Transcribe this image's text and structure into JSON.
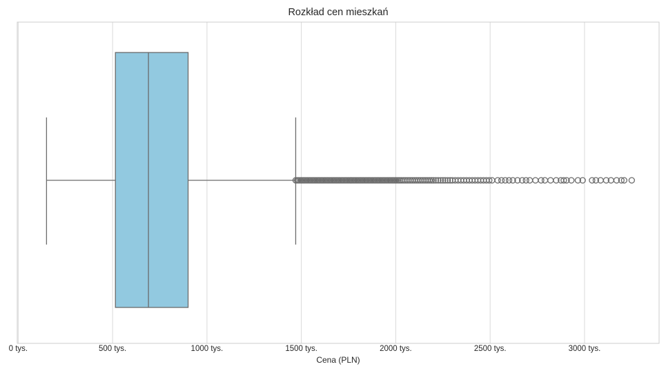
{
  "chart_data": {
    "type": "box",
    "title": "Rozkład cen mieszkań",
    "xlabel": "Cena (PLN)",
    "ylabel": "",
    "xlim": [
      -5,
      3395
    ],
    "orientation": "horizontal",
    "grid": "vertical",
    "ticks": [
      {
        "value": 0,
        "label": "0 tys."
      },
      {
        "value": 500,
        "label": "500 tys."
      },
      {
        "value": 1000,
        "label": "1000 tys."
      },
      {
        "value": 1500,
        "label": "1500 tys."
      },
      {
        "value": 2000,
        "label": "2000 tys."
      },
      {
        "value": 2500,
        "label": "2500 tys."
      },
      {
        "value": 3000,
        "label": "3000 tys."
      }
    ],
    "box": {
      "whisker_low": 150,
      "q1": 515,
      "median": 690,
      "q3": 900,
      "whisker_high": 1470
    },
    "outliers": [
      1470,
      1478,
      1486,
      1494,
      1502,
      1510,
      1518,
      1526,
      1534,
      1542,
      1550,
      1558,
      1566,
      1574,
      1582,
      1590,
      1598,
      1606,
      1614,
      1622,
      1630,
      1638,
      1646,
      1654,
      1662,
      1670,
      1678,
      1686,
      1694,
      1702,
      1710,
      1718,
      1726,
      1734,
      1742,
      1750,
      1758,
      1766,
      1774,
      1782,
      1790,
      1798,
      1806,
      1814,
      1822,
      1830,
      1838,
      1846,
      1854,
      1862,
      1870,
      1878,
      1886,
      1894,
      1902,
      1910,
      1918,
      1926,
      1934,
      1942,
      1950,
      1958,
      1966,
      1974,
      1982,
      1990,
      1998,
      2006,
      2014,
      2022,
      2030,
      2040,
      2050,
      2060,
      2070,
      2080,
      2090,
      2100,
      2110,
      2120,
      2130,
      2140,
      2150,
      2160,
      2170,
      2180,
      2190,
      2200,
      2212,
      2225,
      2238,
      2250,
      2262,
      2275,
      2288,
      2300,
      2315,
      2330,
      2345,
      2360,
      2375,
      2390,
      2405,
      2420,
      2435,
      2450,
      2465,
      2480,
      2495,
      2510,
      2540,
      2560,
      2580,
      2600,
      2620,
      2645,
      2670,
      2690,
      2710,
      2740,
      2770,
      2790,
      2820,
      2850,
      2875,
      2890,
      2905,
      2930,
      2965,
      2990,
      3040,
      3060,
      3085,
      3115,
      3140,
      3170,
      3195,
      3210,
      3250
    ],
    "colors": {
      "box_fill": "#92c9e0",
      "line": "#6b6b6b",
      "grid": "#d9d9d9",
      "frame": "#cccccc"
    }
  }
}
